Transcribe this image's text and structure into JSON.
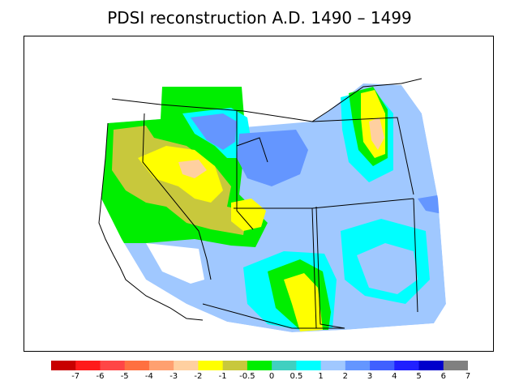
{
  "title": "PDSI reconstruction A.D. 1490 – 1499",
  "legend": {
    "colors": [
      "#c80000",
      "#ff1a1a",
      "#ff4646",
      "#ff7040",
      "#ffa070",
      "#ffd0a0",
      "#ffff00",
      "#c8c83c",
      "#00ee00",
      "#40d0c0",
      "#00ffff",
      "#a0c8ff",
      "#6496ff",
      "#4060ff",
      "#2020ff",
      "#0000cc",
      "#808080"
    ],
    "tick_labels": [
      "-7",
      "-6",
      "-5",
      "-4",
      "-3",
      "-2",
      "-1",
      "-0.5",
      "0",
      "0.5",
      "1",
      "2",
      "3",
      "4",
      "5",
      "6",
      "7"
    ]
  }
}
